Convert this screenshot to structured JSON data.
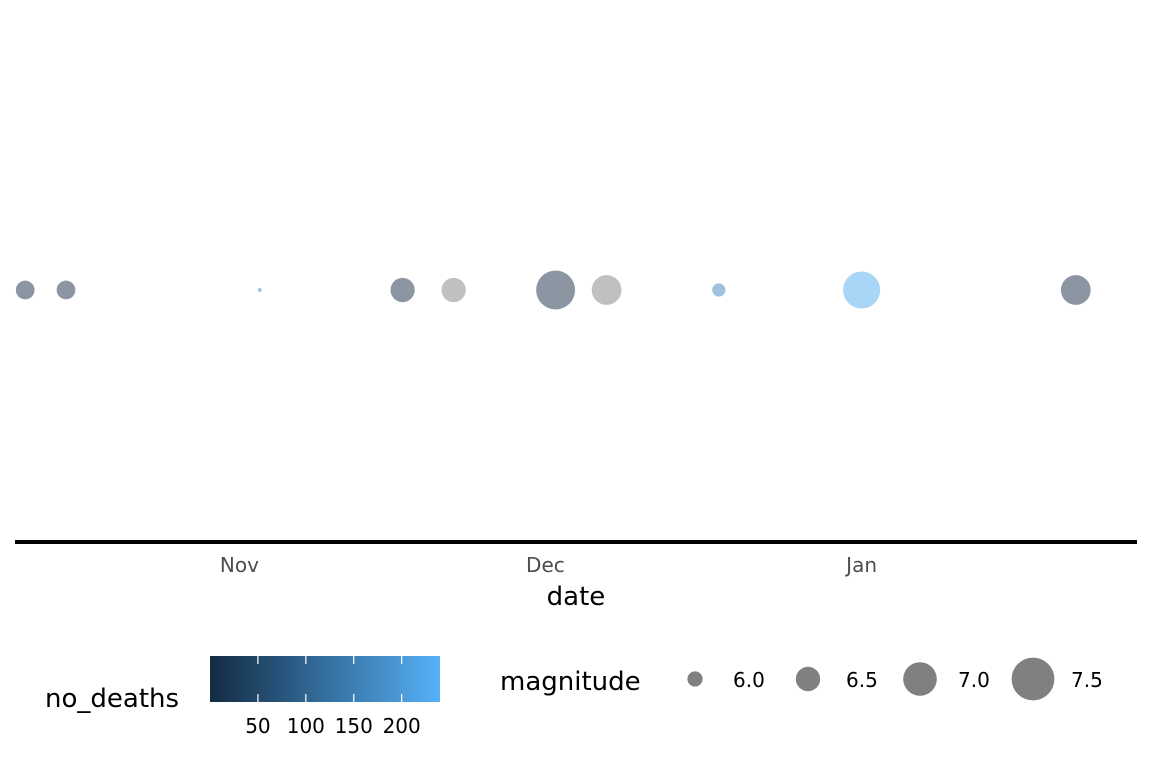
{
  "chart_data": {
    "type": "scatter",
    "title": "",
    "xlabel": "date",
    "ylabel": "",
    "x_axis": {
      "type": "date",
      "ticks": [
        {
          "label": "Nov",
          "date": "2017-11-01"
        },
        {
          "label": "Dec",
          "date": "2017-12-01"
        },
        {
          "label": "Jan",
          "date": "2018-01-01"
        }
      ],
      "range": [
        "2017-10-10",
        "2018-01-28"
      ]
    },
    "y_axis": {
      "shown": false
    },
    "grid": false,
    "legend_position": "bottom",
    "points": [
      {
        "date": "2017-10-11",
        "magnitude": 6.3,
        "no_deaths": null
      },
      {
        "date": "2017-10-15",
        "magnitude": 6.3,
        "no_deaths": null
      },
      {
        "date": "2017-11-03",
        "magnitude": 5.5,
        "no_deaths": 180
      },
      {
        "date": "2017-11-17",
        "magnitude": 6.6,
        "no_deaths": null
      },
      {
        "date": "2017-11-22",
        "magnitude": 6.6,
        "no_deaths": 0
      },
      {
        "date": "2017-12-02",
        "magnitude": 7.4,
        "no_deaths": null
      },
      {
        "date": "2017-12-07",
        "magnitude": 6.9,
        "no_deaths": 0
      },
      {
        "date": "2017-12-18",
        "magnitude": 6.0,
        "no_deaths": 160
      },
      {
        "date": "2018-01-01",
        "magnitude": 7.3,
        "no_deaths": 230
      },
      {
        "date": "2018-01-22",
        "magnitude": 6.9,
        "no_deaths": null
      }
    ],
    "legends": {
      "color": {
        "title": "no_deaths",
        "breaks": [
          50,
          100,
          150,
          200
        ],
        "range": [
          0,
          240
        ],
        "low_color": "#132b43",
        "high_color": "#56b1f7"
      },
      "size": {
        "title": "magnitude",
        "breaks": [
          6.0,
          6.5,
          7.0,
          7.5
        ],
        "labels": [
          "6.0",
          "6.5",
          "7.0",
          "7.5"
        ],
        "key_color": "#808080"
      }
    },
    "colors": {
      "na_point": "#8c96a2",
      "zero_point": "#c0c0c0",
      "axis_line": "#000000"
    }
  }
}
